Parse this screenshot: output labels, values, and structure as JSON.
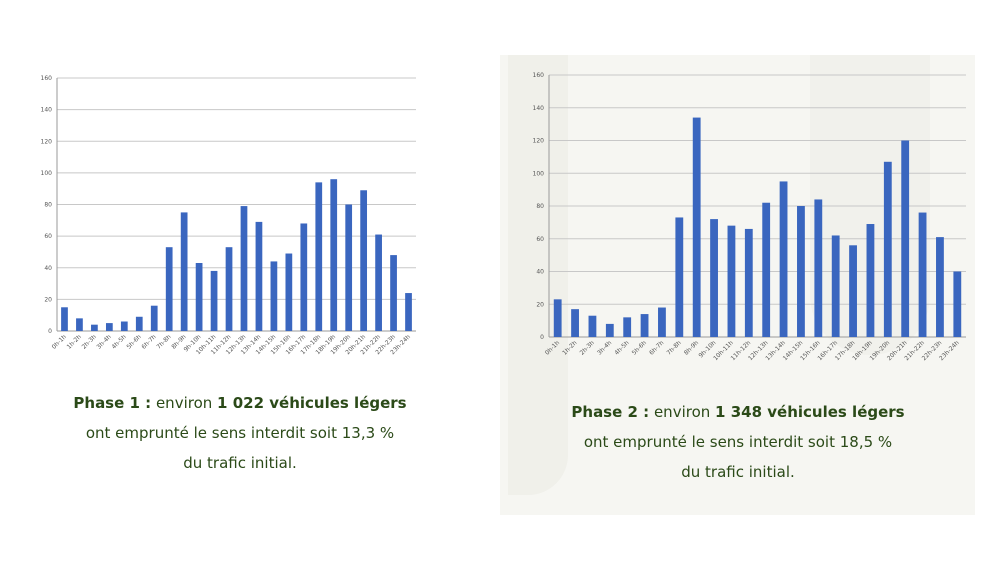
{
  "chart_data": [
    {
      "type": "bar",
      "title": "",
      "xlabel": "",
      "ylabel": "",
      "ylim": [
        0,
        160
      ],
      "yticks": [
        "0",
        "20",
        "40",
        "60",
        "80",
        "100",
        "120",
        "140",
        "160"
      ],
      "grid": true,
      "categories": [
        "0h-1h",
        "1h-2h",
        "2h-3h",
        "3h-4h",
        "4h-5h",
        "5h-6h",
        "6h-7h",
        "7h-8h",
        "8h-9h",
        "9h-10h",
        "10h-11h",
        "11h-12h",
        "12h-13h",
        "13h-14h",
        "14h-15h",
        "15h-16h",
        "16h-17h",
        "17h-18h",
        "18h-19h",
        "19h-20h",
        "20h-21h",
        "21h-22h",
        "22h-23h",
        "23h-24h"
      ],
      "values": [
        15,
        8,
        4,
        5,
        6,
        9,
        16,
        53,
        75,
        43,
        38,
        53,
        79,
        69,
        44,
        49,
        68,
        94,
        96,
        80,
        89,
        61,
        48,
        24
      ]
    },
    {
      "type": "bar",
      "title": "",
      "xlabel": "",
      "ylabel": "",
      "ylim": [
        0,
        160
      ],
      "yticks": [
        "0",
        "20",
        "40",
        "60",
        "80",
        "100",
        "120",
        "140",
        "160"
      ],
      "grid": true,
      "categories": [
        "0h-1h",
        "1h-2h",
        "2h-3h",
        "3h-4h",
        "4h-5h",
        "5h-6h",
        "6h-7h",
        "7h-8h",
        "8h-9h",
        "9h-10h",
        "10h-11h",
        "11h-12h",
        "12h-13h",
        "13h-14h",
        "14h-15h",
        "15h-16h",
        "16h-17h",
        "17h-18h",
        "18h-19h",
        "19h-20h",
        "20h-21h",
        "21h-22h",
        "22h-23h",
        "23h-24h"
      ],
      "values": [
        23,
        17,
        13,
        8,
        12,
        14,
        18,
        73,
        134,
        72,
        68,
        66,
        82,
        95,
        80,
        84,
        62,
        56,
        69,
        107,
        120,
        76,
        61,
        40
      ]
    }
  ],
  "captions": [
    {
      "phase": "Phase 1 :",
      "intro": "environ",
      "amount": "1 022 véhicules légers",
      "line2": "ont emprunté le sens interdit soit 13,3 %",
      "line3": "du trafic initial."
    },
    {
      "phase": "Phase 2 :",
      "intro": "environ",
      "amount": "1 348 véhicules légers",
      "line2": "ont emprunté le sens interdit soit 18,5 %",
      "line3": "du trafic initial."
    }
  ],
  "colors": {
    "bar": "#3a66bf",
    "caption": "#2b4a18"
  }
}
